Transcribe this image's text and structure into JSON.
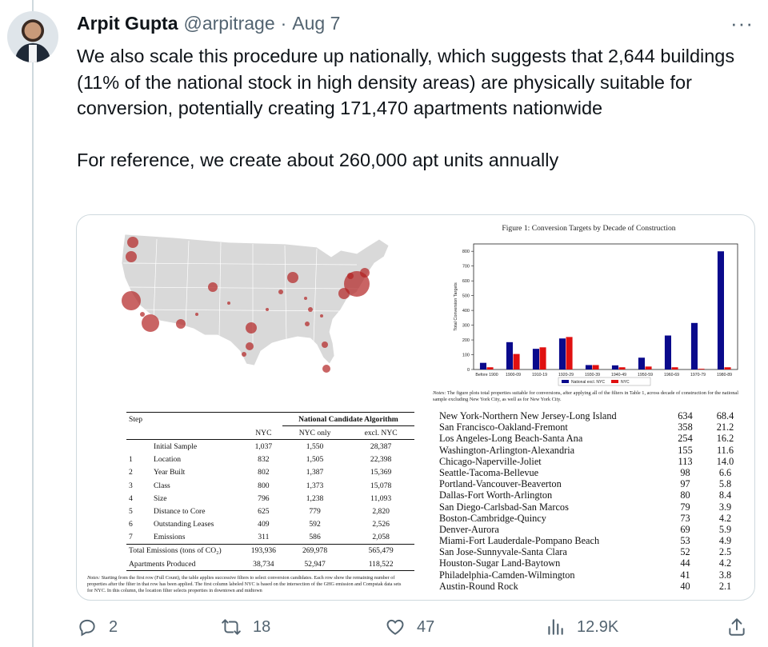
{
  "tweet": {
    "author_name": "Arpit Gupta",
    "handle": "@arpitrage",
    "separator": "·",
    "date": "Aug 7",
    "more": "···",
    "paragraph_1": "We also scale this procedure up nationally, which suggests that 2,644 buildings (11% of the national stock in high density areas) are physically suitable for conversion, potentially creating 171,470 apartments nationwide",
    "paragraph_2": "For reference, we create about 260,000 apt units annually"
  },
  "actions": {
    "replies": "2",
    "retweets": "18",
    "likes": "47",
    "views": "12.9K"
  },
  "table1": {
    "col_step": "Step",
    "col_group": "National Candidate Algorithm",
    "col_nyc": "NYC",
    "col_nyc_only": "NYC only",
    "col_excl": "excl. NYC",
    "rows": [
      {
        "idx": "",
        "label": "Initial Sample",
        "nyc": "1,037",
        "nyc_only": "1,550",
        "excl": "28,387"
      },
      {
        "idx": "1",
        "label": "Location",
        "nyc": "832",
        "nyc_only": "1,505",
        "excl": "22,398"
      },
      {
        "idx": "2",
        "label": "Year Built",
        "nyc": "802",
        "nyc_only": "1,387",
        "excl": "15,369"
      },
      {
        "idx": "3",
        "label": "Class",
        "nyc": "800",
        "nyc_only": "1,373",
        "excl": "15,078"
      },
      {
        "idx": "4",
        "label": "Size",
        "nyc": "796",
        "nyc_only": "1,238",
        "excl": "11,093"
      },
      {
        "idx": "5",
        "label": "Distance to Core",
        "nyc": "625",
        "nyc_only": "779",
        "excl": "2,820"
      },
      {
        "idx": "6",
        "label": "Outstanding Leases",
        "nyc": "409",
        "nyc_only": "592",
        "excl": "2,526"
      },
      {
        "idx": "7",
        "label": "Emissions",
        "nyc": "311",
        "nyc_only": "586",
        "excl": "2,058"
      }
    ],
    "emissions_label": "Total Emissions (tons of CO₂)",
    "emissions": {
      "nyc": "193,936",
      "nyc_only": "269,978",
      "excl": "565,479"
    },
    "apartments_label": "Apartments Produced",
    "apartments": {
      "nyc": "38,734",
      "nyc_only": "52,947",
      "excl": "118,522"
    },
    "notes_label": "Notes:",
    "notes": "Starting from the first row (Full Count), the table applies successive filters to select conversion candidates. Each row show the remaining number of properties after the filter in that row has been applied. The first column labeled NYC is based on the intersection of the GHG emission and Compstak data sets for NYC. In this column, the location filter selects properties in downtown and midtown"
  },
  "figure": {
    "title": "Figure 1: Conversion Targets by Decade of Construction",
    "notes_label": "Notes:",
    "notes": "The figure plots total properties suitable for conversions, after applying all of the filters in Table 1, across decade of construction for the national sample excluding New York City, as well as for New York City."
  },
  "chart_data": {
    "type": "bar",
    "title": "Figure 1: Conversion Targets by Decade of Construction",
    "xlabel": "",
    "ylabel": "Total Conversion Targets",
    "ylim": [
      0,
      850
    ],
    "yticks": [
      0,
      100,
      200,
      300,
      400,
      500,
      600,
      700,
      800
    ],
    "categories": [
      "Before 1900",
      "1900-09",
      "1910-19",
      "1920-29",
      "1930-39",
      "1940-49",
      "1950-59",
      "1960-69",
      "1970-79",
      "1980-89"
    ],
    "series": [
      {
        "name": "National excl. NYC",
        "color": "#0a0a8c",
        "values": [
          45,
          185,
          140,
          210,
          30,
          28,
          80,
          230,
          315,
          800
        ]
      },
      {
        "name": "NYC",
        "color": "#e01010",
        "values": [
          15,
          105,
          150,
          220,
          30,
          15,
          20,
          15,
          5,
          15
        ]
      }
    ],
    "legend_position": "bottom-center"
  },
  "metro_table": {
    "rows": [
      {
        "metro": "New York-Northern New Jersey-Long Island",
        "v1": "634",
        "v2": "68.4"
      },
      {
        "metro": "San Francisco-Oakland-Fremont",
        "v1": "358",
        "v2": "21.2"
      },
      {
        "metro": "Los Angeles-Long Beach-Santa Ana",
        "v1": "254",
        "v2": "16.2"
      },
      {
        "metro": "Washington-Arlington-Alexandria",
        "v1": "155",
        "v2": "11.6"
      },
      {
        "metro": "Chicago-Naperville-Joliet",
        "v1": "113",
        "v2": "14.0"
      },
      {
        "metro": "Seattle-Tacoma-Bellevue",
        "v1": "98",
        "v2": "6.6"
      },
      {
        "metro": "Portland-Vancouver-Beaverton",
        "v1": "97",
        "v2": "5.8"
      },
      {
        "metro": "Dallas-Fort Worth-Arlington",
        "v1": "80",
        "v2": "8.4"
      },
      {
        "metro": "San Diego-Carlsbad-San Marcos",
        "v1": "79",
        "v2": "3.9"
      },
      {
        "metro": "Boston-Cambridge-Quincy",
        "v1": "73",
        "v2": "4.2"
      },
      {
        "metro": "Denver-Aurora",
        "v1": "69",
        "v2": "5.9"
      },
      {
        "metro": "Miami-Fort Lauderdale-Pompano Beach",
        "v1": "53",
        "v2": "4.9"
      },
      {
        "metro": "San Jose-Sunnyvale-Santa Clara",
        "v1": "52",
        "v2": "2.5"
      },
      {
        "metro": "Houston-Sugar Land-Baytown",
        "v1": "44",
        "v2": "4.2"
      },
      {
        "metro": "Philadelphia-Camden-Wilmington",
        "v1": "41",
        "v2": "3.8"
      },
      {
        "metro": "Austin-Round Rock",
        "v1": "40",
        "v2": "2.1"
      }
    ]
  },
  "colors": {
    "text": "#0f1419",
    "muted": "#536471",
    "border": "#cfd9de",
    "map_land": "#d9d9d9",
    "map_bubble": "#b22222"
  },
  "icons": [
    "reply-icon",
    "retweet-icon",
    "like-icon",
    "views-icon",
    "share-icon",
    "more-icon"
  ]
}
